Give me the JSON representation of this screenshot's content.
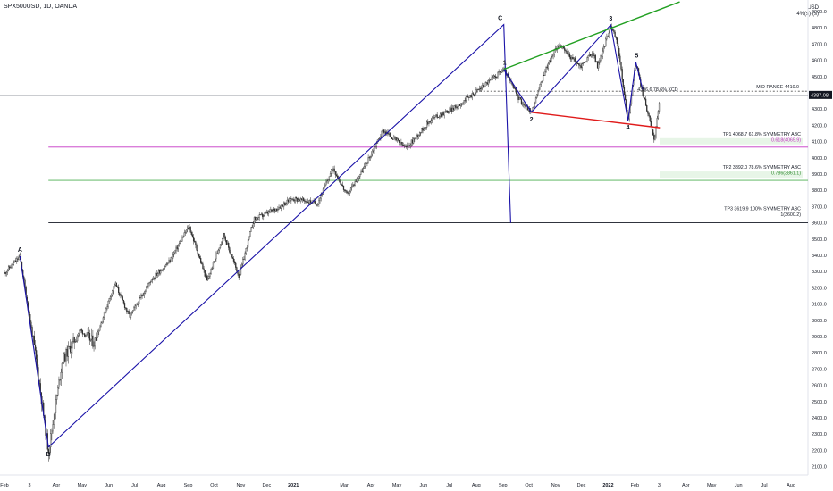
{
  "header": {
    "symbol_line": "SPX500USD, 1D, OANDA",
    "currency": "USD",
    "currency_sub": "4%(s)·(s)"
  },
  "chart_data": {
    "type": "candlestick",
    "title": "SPX500USD, 1D, OANDA",
    "x_tick_labels": [
      "Feb",
      "3",
      "Apr",
      "May",
      "Jun",
      "Jul",
      "Aug",
      "Sep",
      "Oct",
      "Nov",
      "Dec",
      "2021",
      "Mar",
      "Apr",
      "May",
      "Jun",
      "Jul",
      "Aug",
      "Sep",
      "Oct",
      "Nov",
      "Dec",
      "2022",
      "Feb",
      "3",
      "Apr",
      "May",
      "Jun",
      "Jul",
      "Aug"
    ],
    "y_tick_labels": [
      "4900.0",
      "4800.0",
      "4700.0",
      "4600.0",
      "4500.0",
      "4400.0",
      "4300.0",
      "4200.0",
      "4100.0",
      "4000.0",
      "3900.0",
      "3800.0",
      "3700.0",
      "3600.0",
      "3500.0",
      "3400.0",
      "3300.0",
      "3200.0",
      "3100.0",
      "3000.0",
      "2900.0",
      "2800.0",
      "2700.0",
      "2600.0",
      "2500.0",
      "2400.0",
      "2300.0",
      "2200.0",
      "2100.0"
    ],
    "ylim": [
      2050,
      4960
    ],
    "last_price": "4387.08",
    "price_path": [
      [
        "2020-02-01",
        3290
      ],
      [
        "2020-02-19",
        3393
      ],
      [
        "2020-03-09",
        2750
      ],
      [
        "2020-03-23",
        2191
      ],
      [
        "2020-04-08",
        2750
      ],
      [
        "2020-04-29",
        2940
      ],
      [
        "2020-05-15",
        2860
      ],
      [
        "2020-06-08",
        3230
      ],
      [
        "2020-06-25",
        3020
      ],
      [
        "2020-07-20",
        3250
      ],
      [
        "2020-08-10",
        3360
      ],
      [
        "2020-09-02",
        3580
      ],
      [
        "2020-09-23",
        3240
      ],
      [
        "2020-10-12",
        3530
      ],
      [
        "2020-10-30",
        3270
      ],
      [
        "2020-11-16",
        3620
      ],
      [
        "2020-12-10",
        3680
      ],
      [
        "2020-12-31",
        3750
      ],
      [
        "2021-01-29",
        3720
      ],
      [
        "2021-02-16",
        3940
      ],
      [
        "2021-03-04",
        3770
      ],
      [
        "2021-03-25",
        3950
      ],
      [
        "2021-04-15",
        4170
      ],
      [
        "2021-05-12",
        4060
      ],
      [
        "2021-06-10",
        4240
      ],
      [
        "2021-07-08",
        4310
      ],
      [
        "2021-08-06",
        4430
      ],
      [
        "2021-09-02",
        4545
      ],
      [
        "2021-09-20",
        4360
      ],
      [
        "2021-10-04",
        4280
      ],
      [
        "2021-10-20",
        4540
      ],
      [
        "2021-11-04",
        4700
      ],
      [
        "2021-11-30",
        4560
      ],
      [
        "2021-12-14",
        4650
      ],
      [
        "2021-12-20",
        4560
      ],
      [
        "2022-01-04",
        4818
      ],
      [
        "2022-01-12",
        4700
      ],
      [
        "2022-01-24",
        4220
      ],
      [
        "2022-02-02",
        4590
      ],
      [
        "2022-02-10",
        4400
      ],
      [
        "2022-02-24",
        4110
      ],
      [
        "2022-03-02",
        4387
      ]
    ],
    "patterns": [
      {
        "name": "ABC",
        "color": "#1a12a8",
        "points": [
          {
            "label": "A",
            "x": "2020-02-19",
            "y": 3395
          },
          {
            "label": "B",
            "x": "2020-03-23",
            "y": 2220
          },
          {
            "label": "C",
            "x": "2021-09-02",
            "y": 4820
          },
          {
            "label": "",
            "x": "2021-09-10",
            "y": 3600
          }
        ]
      },
      {
        "name": "Waves",
        "color": "#1a12a8",
        "points": [
          {
            "label": "1",
            "x": "2021-09-02",
            "y": 4545
          },
          {
            "label": "2",
            "x": "2021-10-04",
            "y": 4280
          },
          {
            "label": "3",
            "x": "2022-01-04",
            "y": 4818
          },
          {
            "label": "4",
            "x": "2022-01-24",
            "y": 4230
          },
          {
            "label": "5",
            "x": "2022-02-02",
            "y": 4590
          },
          {
            "label": "",
            "x": "2022-02-10",
            "y": 4420
          }
        ]
      }
    ],
    "trendlines": [
      {
        "name": "upper",
        "color": "#22a022",
        "x1": "2021-09-02",
        "y1": 4545,
        "x2": "2022-03-25",
        "y2": 4960
      },
      {
        "name": "lower",
        "color": "#e01b1b",
        "x1": "2021-10-04",
        "y1": 4280,
        "x2": "2022-03-02",
        "y2": 4185
      }
    ],
    "levels": [
      {
        "name": "mid-range",
        "value": 4410,
        "style": "dotted",
        "color": "#555555",
        "x_start": "2021-08-01",
        "labels": [
          {
            "text": "MID RANGE  4410.0",
            "color": "#131722"
          }
        ]
      },
      {
        "name": "tp1",
        "value": 4065.9,
        "color": "#c433c4",
        "x_start": "2020-03-23",
        "labels": [
          {
            "text": "TP1 4068.7 61.8% SYMMETRY  ABC",
            "color": "#131722"
          },
          {
            "text": "0.618(4065.9)",
            "color": "#c433c4"
          }
        ]
      },
      {
        "name": "tp2",
        "value": 3861.1,
        "color": "#4caf50",
        "x_start": "2020-03-23",
        "labels": [
          {
            "text": "TP2 3892.0 78.6% SYMMETRY  ABC",
            "color": "#131722"
          },
          {
            "text": "0.786(3861.1)",
            "color": "#2e8b2e"
          }
        ]
      },
      {
        "name": "tp3",
        "value": 3600.2,
        "color": "#131722",
        "x_start": "2020-03-23",
        "labels": [
          {
            "text": "TP3 3619.9 100% SYMMETRY ABC",
            "color": "#131722"
          },
          {
            "text": "1(3600.2)",
            "color": "#131722"
          }
        ]
      }
    ],
    "annotations": [
      {
        "text": "4396.6 78.6% XCD",
        "x": "2022-02-04",
        "y": 4412
      }
    ],
    "grid": false
  }
}
